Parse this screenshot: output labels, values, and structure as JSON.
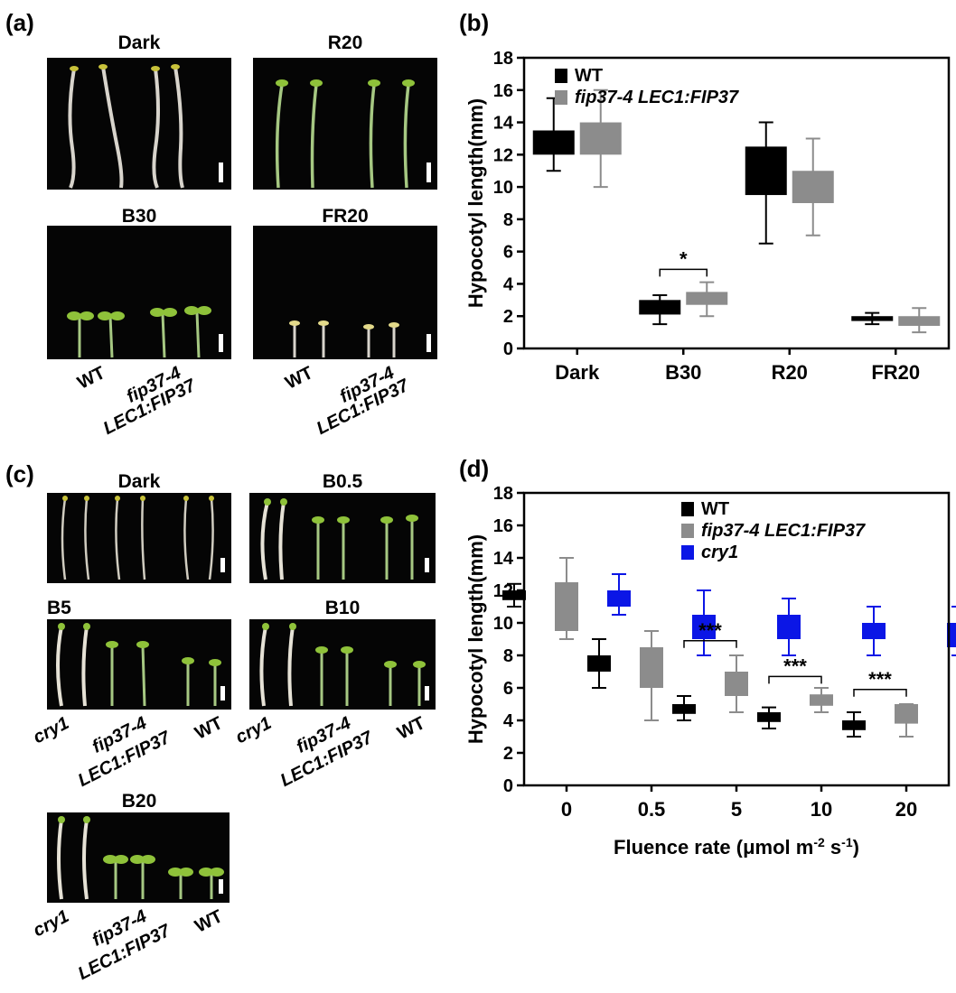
{
  "panels": {
    "a": {
      "letter": "(a)",
      "photos": [
        {
          "title": "Dark",
          "kind": "dark_etiolated"
        },
        {
          "title": "R20",
          "kind": "red"
        },
        {
          "title": "B30",
          "kind": "blue"
        },
        {
          "title": "FR20",
          "kind": "farred"
        }
      ],
      "genotype_labels": {
        "wt": "WT",
        "line1": "fip37-4",
        "line2": "LEC1:FIP37"
      }
    },
    "b": {
      "letter": "(b)"
    },
    "c": {
      "letter": "(c)",
      "photos": [
        {
          "title": "Dark"
        },
        {
          "title": "B0.5"
        },
        {
          "title": "B5"
        },
        {
          "title": "B10"
        },
        {
          "title": "B20"
        }
      ],
      "genotype_labels": {
        "cry1": "cry1",
        "line1": "fip37-4",
        "line2": "LEC1:FIP37",
        "wt": "WT"
      }
    },
    "d": {
      "letter": "(d)"
    }
  },
  "colors": {
    "wt": "#000000",
    "fip": "#8c8c8c",
    "cry1": "#0b16e6",
    "seedling_etiolated": "#d9d2c2",
    "seedling_green": "#8fc23a"
  },
  "chart_data": [
    {
      "panel": "b",
      "type": "box",
      "categories": [
        "Dark",
        "B30",
        "R20",
        "FR20"
      ],
      "ylabel": "Hypocotyl length(mm)",
      "xlabel": "",
      "ylim": [
        0,
        18
      ],
      "yticks": [
        0,
        2,
        4,
        6,
        8,
        10,
        12,
        14,
        16,
        18
      ],
      "legend_position": "top-right",
      "series": [
        {
          "name": "WT",
          "color_key": "wt",
          "boxes": [
            {
              "min": 11,
              "q1": 12,
              "q3": 13.5,
              "max": 15.5
            },
            {
              "min": 1.5,
              "q1": 2.1,
              "q3": 3.0,
              "max": 3.3
            },
            {
              "min": 6.5,
              "q1": 9.5,
              "q3": 12.5,
              "max": 14
            },
            {
              "min": 1.5,
              "q1": 1.7,
              "q3": 2.0,
              "max": 2.2
            }
          ]
        },
        {
          "name": "fip37-4 LEC1:FIP37",
          "color_key": "fip",
          "boxes": [
            {
              "min": 10,
              "q1": 12,
              "q3": 14,
              "max": 16
            },
            {
              "min": 2.0,
              "q1": 2.7,
              "q3": 3.5,
              "max": 4.1
            },
            {
              "min": 7,
              "q1": 9,
              "q3": 11,
              "max": 13
            },
            {
              "min": 1.0,
              "q1": 1.4,
              "q3": 2.0,
              "max": 2.5
            }
          ]
        }
      ],
      "annotations": [
        {
          "category_index": 1,
          "text": "*",
          "y": 4.9
        }
      ]
    },
    {
      "panel": "d",
      "type": "box",
      "categories": [
        "0",
        "0.5",
        "5",
        "10",
        "20"
      ],
      "ylabel": "Hypocotyl length(mm)",
      "xlabel": "Fluence rate (μmol m-2 s-1)",
      "xlabel_parts": [
        "Fluence rate (μmol m",
        "-2",
        " s",
        "-1",
        ")"
      ],
      "ylim": [
        0,
        18
      ],
      "yticks": [
        0,
        2,
        4,
        6,
        8,
        10,
        12,
        14,
        16,
        18
      ],
      "legend_position": "top-right",
      "series": [
        {
          "name": "WT",
          "color_key": "wt",
          "boxes": [
            {
              "min": 11,
              "q1": 11.4,
              "q3": 12.0,
              "max": 12.4
            },
            {
              "min": 6,
              "q1": 7.0,
              "q3": 8.0,
              "max": 9
            },
            {
              "min": 4,
              "q1": 4.4,
              "q3": 5.0,
              "max": 5.5
            },
            {
              "min": 3.5,
              "q1": 3.9,
              "q3": 4.5,
              "max": 4.8
            },
            {
              "min": 3,
              "q1": 3.4,
              "q3": 4.0,
              "max": 4.5
            }
          ]
        },
        {
          "name": "fip37-4 LEC1:FIP37",
          "color_key": "fip",
          "boxes": [
            {
              "min": 9,
              "q1": 9.5,
              "q3": 12.5,
              "max": 14
            },
            {
              "min": 4,
              "q1": 6,
              "q3": 8.5,
              "max": 9.5
            },
            {
              "min": 4.5,
              "q1": 5.5,
              "q3": 7,
              "max": 8
            },
            {
              "min": 4.5,
              "q1": 4.9,
              "q3": 5.6,
              "max": 6
            },
            {
              "min": 3,
              "q1": 3.8,
              "q3": 5,
              "max": 5
            }
          ]
        },
        {
          "name": "cry1",
          "color_key": "cry1",
          "boxes": [
            {
              "min": 10.5,
              "q1": 11.0,
              "q3": 12.0,
              "max": 13
            },
            {
              "min": 8,
              "q1": 9,
              "q3": 10.5,
              "max": 12
            },
            {
              "min": 8,
              "q1": 9,
              "q3": 10.5,
              "max": 11.5
            },
            {
              "min": 8,
              "q1": 9,
              "q3": 10,
              "max": 11
            },
            {
              "min": 8,
              "q1": 8.5,
              "q3": 10,
              "max": 11
            }
          ]
        }
      ],
      "annotations": [
        {
          "category_index": 2,
          "text": "***",
          "y": 8.9
        },
        {
          "category_index": 3,
          "text": "***",
          "y": 6.7
        },
        {
          "category_index": 4,
          "text": "***",
          "y": 5.9
        }
      ]
    }
  ]
}
